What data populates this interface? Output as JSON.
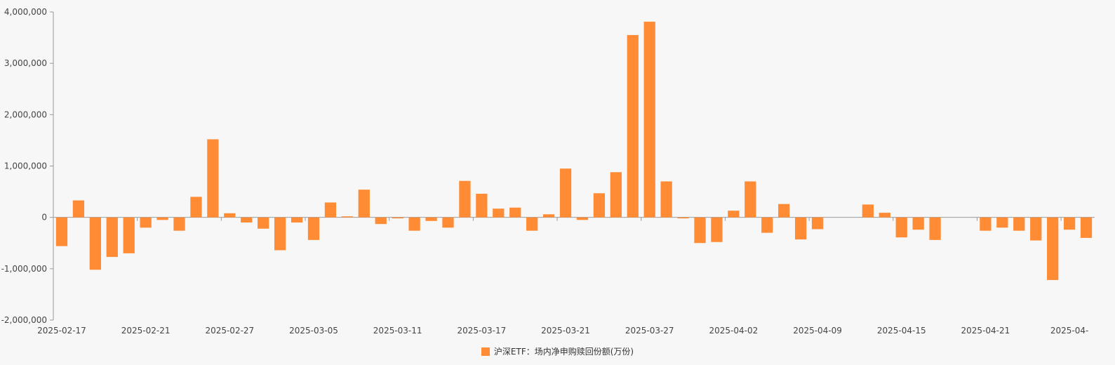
{
  "colors": {
    "bar": "#FF8C35",
    "axis": "#9a9a9a",
    "background": "#f7f7f7"
  },
  "chart_data": {
    "type": "bar",
    "ylim": [
      -2000000,
      4000000
    ],
    "y_ticks": [
      4000000,
      3000000,
      2000000,
      1000000,
      0,
      -1000000,
      -2000000
    ],
    "y_tick_labels": [
      "4,000,000",
      "3,000,000",
      "2,000,000",
      "1,000,000",
      "0",
      "-1,000,000",
      "-2,000,000"
    ],
    "x_tick_labels": [
      "2025-02-17",
      "2025-02-21",
      "2025-02-27",
      "2025-03-05",
      "2025-03-11",
      "2025-03-17",
      "2025-03-21",
      "2025-03-27",
      "2025-04-02",
      "2025-04-09",
      "2025-04-15",
      "2025-04-21",
      "2025-04-"
    ],
    "legend": "沪深ETF：场内净申购赎回份额(万份)",
    "categories": [
      "2025-02-17",
      "2025-02-18",
      "2025-02-19",
      "2025-02-20",
      "2025-02-21",
      "2025-02-24",
      "2025-02-25",
      "2025-02-26",
      "2025-02-27",
      "2025-02-28",
      "2025-03-03",
      "2025-03-04",
      "2025-03-05",
      "2025-03-06",
      "2025-03-07",
      "2025-03-10",
      "2025-03-11",
      "2025-03-12",
      "2025-03-13",
      "2025-03-14",
      "2025-03-17",
      "2025-03-18",
      "2025-03-19",
      "2025-03-20",
      "2025-03-21",
      "2025-03-24",
      "2025-03-25",
      "2025-03-26",
      "2025-03-27",
      "2025-03-28",
      "2025-03-31",
      "2025-04-01",
      "2025-04-02",
      "2025-04-03",
      "2025-04-07",
      "2025-04-08",
      "2025-04-09",
      "2025-04-10",
      "2025-04-11",
      "2025-04-14",
      "2025-04-15",
      "2025-04-16",
      "2025-04-17",
      "2025-04-18",
      "2025-04-21",
      "2025-04-22",
      "2025-04-23",
      "2025-04-24",
      "2025-04-25",
      "2025-04-28",
      "2025-04-29",
      "2025-04-30",
      "2025-05-06",
      "2025-05-07",
      "2025-05-08",
      "2025-05-09",
      "2025-05-12",
      "2025-05-13",
      "2025-05-14",
      "2025-05-15",
      "2025-05-16",
      "2025-05-19"
    ],
    "values": [
      -560000,
      330000,
      -1020000,
      -770000,
      -700000,
      -200000,
      -50000,
      -260000,
      400000,
      1520000,
      80000,
      -100000,
      -220000,
      -640000,
      -100000,
      -440000,
      290000,
      20000,
      540000,
      -130000,
      -20000,
      -260000,
      -70000,
      -200000,
      710000,
      460000,
      170000,
      190000,
      -260000,
      60000,
      950000,
      -50000,
      470000,
      880000,
      3550000,
      3810000,
      700000,
      -20000,
      -500000,
      -480000,
      130000,
      700000,
      -300000,
      260000,
      -430000,
      -230000,
      0,
      0,
      250000,
      90000,
      -390000,
      -240000,
      -440000,
      0,
      0,
      -260000,
      -200000,
      -260000,
      -450000,
      -1220000,
      -240000,
      -400000
    ]
  }
}
